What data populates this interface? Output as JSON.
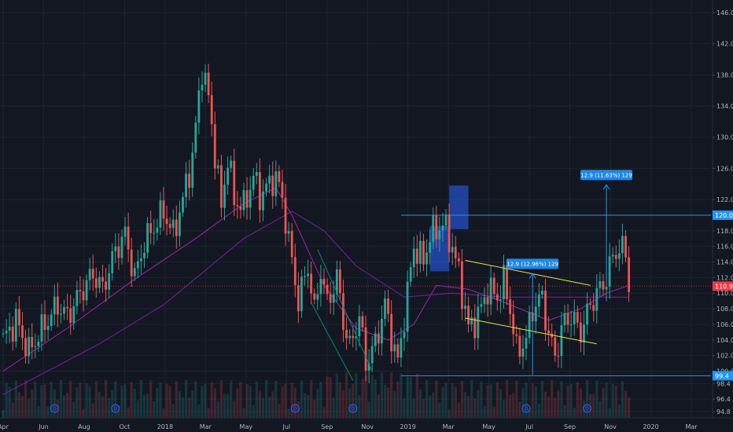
{
  "chart_data": {
    "type": "candlestick",
    "y_axis": {
      "position": "right",
      "range": [
        94,
        146.8
      ],
      "ticks": [
        "94.8",
        "96.4",
        "98.4",
        "100.0",
        "102.0",
        "104.0",
        "106.0",
        "108.0",
        "110.0",
        "112.0",
        "114.0",
        "116.0",
        "118.0",
        "122.0",
        "126.0",
        "130.0",
        "134.0",
        "138.0",
        "142.0",
        "146.0"
      ]
    },
    "x_axis": {
      "ticks": [
        "Apr",
        "Jun",
        "Aug",
        "Oct",
        "2018",
        "Mar",
        "May",
        "Jul",
        "Sep",
        "Nov",
        "2019",
        "Mar",
        "May",
        "Jul",
        "Sep",
        "Nov",
        "2020",
        "Mar"
      ]
    },
    "price_path": [
      [
        0,
        104
      ],
      [
        4,
        106.5
      ],
      [
        8,
        102.5
      ],
      [
        13,
        106
      ],
      [
        17,
        108.5
      ],
      [
        20,
        107
      ],
      [
        24,
        110
      ],
      [
        28,
        112.5
      ],
      [
        31,
        110.5
      ],
      [
        35,
        115.5
      ],
      [
        38,
        117.5
      ],
      [
        41,
        112
      ],
      [
        44,
        116.5
      ],
      [
        47,
        118.5
      ],
      [
        50,
        120.5
      ],
      [
        53,
        117.5
      ],
      [
        56,
        122
      ],
      [
        59,
        127.5
      ],
      [
        62,
        139
      ],
      [
        64,
        135
      ],
      [
        66,
        128
      ],
      [
        68,
        121
      ],
      [
        70,
        127.5
      ],
      [
        72,
        122
      ],
      [
        75,
        121
      ],
      [
        78,
        125
      ],
      [
        80,
        122.5
      ],
      [
        83,
        124
      ],
      [
        85,
        125
      ],
      [
        87,
        122
      ],
      [
        88,
        119.5
      ],
      [
        90,
        114
      ],
      [
        92,
        109
      ],
      [
        95,
        113.5
      ],
      [
        97,
        107.5
      ],
      [
        99,
        113
      ],
      [
        101,
        108.5
      ],
      [
        104,
        112
      ],
      [
        106,
        106.5
      ],
      [
        108,
        103
      ],
      [
        111,
        107
      ],
      [
        113,
        101
      ],
      [
        116,
        103.5
      ],
      [
        119,
        108.5
      ],
      [
        121,
        104.5
      ],
      [
        123,
        101
      ],
      [
        126,
        110
      ],
      [
        128,
        116
      ],
      [
        131,
        114
      ],
      [
        133,
        117.5
      ],
      [
        135,
        118
      ],
      [
        137,
        119
      ],
      [
        140,
        116
      ],
      [
        142,
        112.5
      ],
      [
        145,
        105.5
      ],
      [
        148,
        107
      ],
      [
        151,
        110.5
      ],
      [
        154,
        109.5
      ],
      [
        156,
        111.5
      ],
      [
        158,
        108
      ],
      [
        160,
        102.5
      ],
      [
        163,
        104
      ],
      [
        165,
        108
      ],
      [
        168,
        109.5
      ],
      [
        170,
        104.5
      ],
      [
        172,
        102
      ],
      [
        175,
        106.5
      ],
      [
        177,
        107
      ],
      [
        180,
        105
      ],
      [
        183,
        108.5
      ],
      [
        185,
        110
      ],
      [
        187,
        111
      ],
      [
        190,
        114.5
      ],
      [
        192,
        116
      ],
      [
        194,
        115
      ],
      [
        195,
        111
      ]
    ],
    "last_price": {
      "label": "110.9",
      "value": 110.9,
      "color": "#f23645"
    },
    "horizontal_levels": [
      {
        "label": "120.0",
        "value": 120.0,
        "color": "#2196f3"
      },
      {
        "label": "99.4",
        "value": 99.4,
        "color": "#2196f3"
      }
    ],
    "moving_averages": [
      {
        "color": "#9c27b0",
        "points": [
          [
            0,
            100
          ],
          [
            20,
            105.5
          ],
          [
            40,
            111.5
          ],
          [
            60,
            117
          ],
          [
            75,
            121.5
          ],
          [
            85,
            123.5
          ],
          [
            90,
            120
          ],
          [
            100,
            111
          ],
          [
            110,
            105.5
          ],
          [
            120,
            104
          ],
          [
            128,
            106
          ],
          [
            135,
            111
          ],
          [
            145,
            110.5
          ],
          [
            155,
            109
          ],
          [
            170,
            106.5
          ],
          [
            180,
            108
          ],
          [
            188,
            110
          ],
          [
            195,
            111
          ]
        ]
      },
      {
        "color": "#7b1fa2",
        "points": [
          [
            0,
            97
          ],
          [
            30,
            103.5
          ],
          [
            50,
            108.5
          ],
          [
            75,
            117
          ],
          [
            90,
            120.5
          ],
          [
            100,
            118
          ],
          [
            110,
            113.5
          ],
          [
            125,
            109.5
          ],
          [
            140,
            110
          ],
          [
            155,
            109.5
          ],
          [
            170,
            109.5
          ],
          [
            185,
            109.5
          ],
          [
            195,
            109.5
          ]
        ]
      }
    ],
    "trend_lines": [
      {
        "color": "#e4e44a",
        "from": [
          144,
          114.2
        ],
        "to": [
          183,
          111.0
        ]
      },
      {
        "color": "#e4e44a",
        "from": [
          144,
          106.8
        ],
        "to": [
          185,
          103.5
        ]
      },
      {
        "color": "#00897b",
        "from": [
          98,
          115.6
        ],
        "to": [
          115,
          100.0
        ]
      },
      {
        "color": "#00897b",
        "from": [
          96,
          108.8
        ],
        "to": [
          109,
          98.8
        ]
      }
    ],
    "shaded_boxes": [
      {
        "from": [
          133,
          112.8
        ],
        "to": [
          139,
          118.6
        ],
        "color": "#2962ff"
      },
      {
        "from": [
          139,
          118.2
        ],
        "to": [
          145,
          123.8
        ],
        "color": "#2962ff"
      }
    ],
    "projections": [
      {
        "label": "12.9 (12.96%) 129",
        "x": 165,
        "y_from": 99.5,
        "y_to": 112.5,
        "color": "#2196f3"
      },
      {
        "label": "12.9 (11.63%) 129",
        "x": 188,
        "y_from": 111.0,
        "y_to": 123.9,
        "color": "#2196f3"
      }
    ],
    "dividend_markers": [
      "D",
      "D",
      "D",
      "D",
      "D",
      "D"
    ],
    "grid": true
  }
}
